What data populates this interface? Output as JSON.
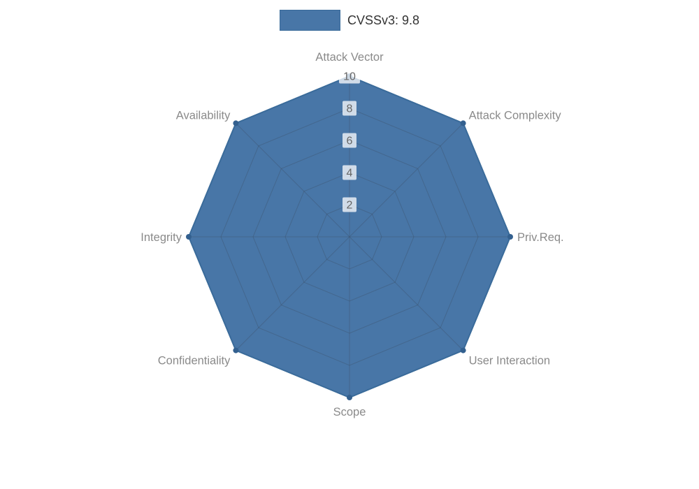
{
  "legend": {
    "label": "CVSSv3: 9.8"
  },
  "chart_data": {
    "type": "radar",
    "title": "CVSSv3: 9.8",
    "axes": [
      "Attack Vector",
      "Attack Complexity",
      "Priv.Req.",
      "User Interaction",
      "Scope",
      "Confidentiality",
      "Integrity",
      "Availability"
    ],
    "series": [
      {
        "name": "CVSSv3: 9.8",
        "values": [
          10,
          10,
          10,
          10,
          10,
          10,
          10,
          10
        ]
      }
    ],
    "ticks": [
      2,
      4,
      6,
      8,
      10
    ],
    "rlim": [
      0,
      10
    ],
    "grid": true,
    "legend_position": "top",
    "colors": {
      "fill": "#4876a7",
      "fill_opacity": 1,
      "border": "#3a6b9a",
      "point": "#33608f",
      "grid_overlay": "rgba(60,78,102,0.38)",
      "tick_text": "#666666",
      "tick_backdrop": "rgba(255,255,255,0.75)",
      "axis_label": "#8a8a8a",
      "legend_text": "#333333"
    }
  }
}
